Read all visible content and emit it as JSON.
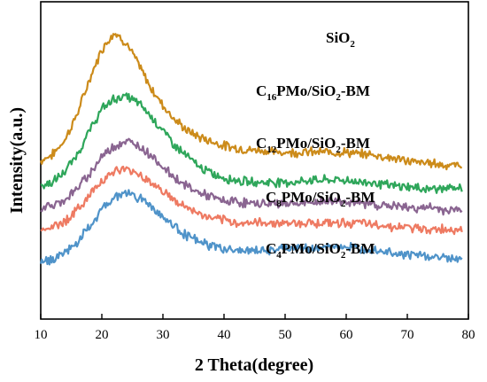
{
  "chart_data": {
    "type": "line",
    "title": "",
    "xlabel": "2 Theta(degree)",
    "ylabel": "Intensity(a.u.)",
    "xlim": [
      10,
      80
    ],
    "x_ticks": [
      "10",
      "20",
      "30",
      "40",
      "50",
      "60",
      "70",
      "80"
    ],
    "y_ticks_shown": false,
    "grid": false,
    "legend": "none (series labelled directly above each curve)",
    "x": [
      10,
      12,
      14,
      16,
      18,
      20,
      22,
      24,
      26,
      28,
      30,
      32,
      34,
      36,
      38,
      40,
      42,
      44,
      46,
      48,
      50,
      52,
      54,
      56,
      58,
      60,
      62,
      64,
      66,
      68,
      70,
      72,
      74,
      76,
      78,
      79
    ],
    "series": [
      {
        "name": "SiO2",
        "label_main": "SiO",
        "label_sub": "2",
        "label_tail": "",
        "color": "#CC8B1A",
        "values": [
          5.2,
          5.5,
          6.2,
          7.4,
          9.0,
          10.4,
          11.2,
          10.7,
          9.7,
          8.6,
          7.8,
          7.1,
          6.6,
          6.3,
          6.1,
          5.9,
          5.8,
          5.7,
          5.7,
          5.6,
          5.6,
          5.6,
          5.6,
          5.6,
          5.6,
          5.6,
          5.5,
          5.5,
          5.4,
          5.3,
          5.2,
          5.1,
          5.1,
          5.0,
          5.0,
          5.0
        ]
      },
      {
        "name": "C16PMo/SiO2-BM",
        "label_main": "C",
        "label_sub": "16",
        "label_tail": "PMo/SiO",
        "label_sub2": "2",
        "label_end": "-BM",
        "color": "#2EA65A",
        "values": [
          4.0,
          4.2,
          4.7,
          5.5,
          6.6,
          7.6,
          8.1,
          8.2,
          7.9,
          7.3,
          6.6,
          5.9,
          5.4,
          4.9,
          4.6,
          4.4,
          4.3,
          4.2,
          4.2,
          4.2,
          4.2,
          4.2,
          4.3,
          4.3,
          4.3,
          4.3,
          4.2,
          4.2,
          4.1,
          4.0,
          4.0,
          3.9,
          3.9,
          3.9,
          3.9,
          3.9
        ]
      },
      {
        "name": "C12PMo/SiO2-BM",
        "label_main": "C",
        "label_sub": "12",
        "label_tail": "PMo/SiO",
        "label_sub2": "2",
        "label_end": "-BM",
        "color": "#8A6591",
        "values": [
          3.0,
          3.1,
          3.4,
          3.9,
          4.6,
          5.4,
          5.9,
          6.1,
          5.9,
          5.5,
          4.9,
          4.4,
          4.0,
          3.7,
          3.5,
          3.3,
          3.3,
          3.2,
          3.2,
          3.2,
          3.2,
          3.2,
          3.2,
          3.3,
          3.3,
          3.3,
          3.2,
          3.2,
          3.1,
          3.1,
          3.0,
          3.0,
          3.0,
          2.9,
          2.9,
          2.9
        ]
      },
      {
        "name": "C8PMo/SiO2-BM",
        "label_main": "C",
        "label_sub": "8",
        "label_tail": "PMo/SiO",
        "label_sub2": "2",
        "label_end": "-BM",
        "color": "#EE7A62",
        "values": [
          2.0,
          2.1,
          2.4,
          2.9,
          3.6,
          4.3,
          4.7,
          4.8,
          4.6,
          4.2,
          3.8,
          3.3,
          3.0,
          2.7,
          2.5,
          2.4,
          2.3,
          2.3,
          2.3,
          2.3,
          2.3,
          2.3,
          2.3,
          2.3,
          2.3,
          2.3,
          2.3,
          2.2,
          2.2,
          2.1,
          2.1,
          2.0,
          2.0,
          2.0,
          2.0,
          2.0
        ]
      },
      {
        "name": "C4PMo/SiO2-BM",
        "label_main": "C",
        "label_sub": "4",
        "label_tail": "PMo/SiO",
        "label_sub2": "2",
        "label_end": "-BM",
        "color": "#4F93C9",
        "values": [
          0.5,
          0.6,
          0.9,
          1.4,
          2.1,
          2.9,
          3.5,
          3.7,
          3.5,
          3.1,
          2.6,
          2.1,
          1.7,
          1.4,
          1.2,
          1.1,
          1.0,
          1.0,
          1.0,
          1.0,
          1.1,
          1.1,
          1.1,
          1.1,
          1.2,
          1.2,
          1.1,
          1.1,
          1.0,
          0.9,
          0.8,
          0.8,
          0.7,
          0.7,
          0.6,
          0.6
        ]
      }
    ]
  }
}
